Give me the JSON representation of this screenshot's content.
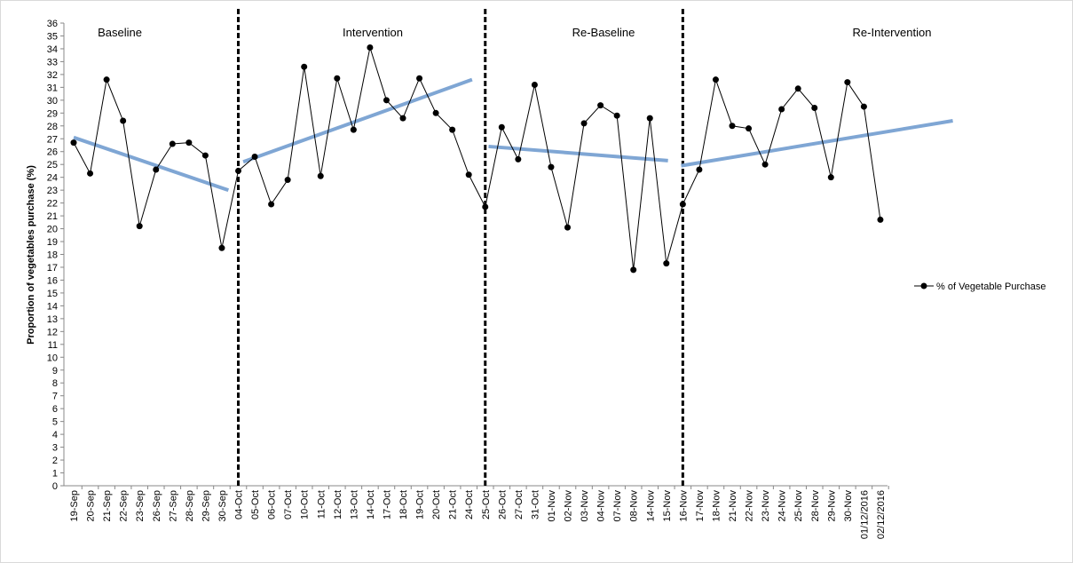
{
  "chart_data": {
    "type": "line",
    "y_axis_label": "Proportion of vegetables purchase (%)",
    "categories": [
      "19-Sep",
      "20-Sep",
      "21-Sep",
      "22-Sep",
      "23-Sep",
      "26-Sep",
      "27-Sep",
      "28-Sep",
      "29-Sep",
      "30-Sep",
      "04-Oct",
      "05-Oct",
      "06-Oct",
      "07-Oct",
      "10-Oct",
      "11-Oct",
      "12-Oct",
      "13-Oct",
      "14-Oct",
      "17-Oct",
      "18-Oct",
      "19-Oct",
      "20-Oct",
      "21-Oct",
      "24-Oct",
      "25-Oct",
      "26-Oct",
      "27-Oct",
      "31-Oct",
      "01-Nov",
      "02-Nov",
      "03-Nov",
      "04-Nov",
      "07-Nov",
      "08-Nov",
      "14-Nov",
      "15-Nov",
      "16-Nov",
      "17-Nov",
      "18-Nov",
      "21-Nov",
      "22-Nov",
      "23-Nov",
      "24-Nov",
      "25-Nov",
      "28-Nov",
      "29-Nov",
      "30-Nov",
      "01/12/2016",
      "02/12/2016"
    ],
    "series": [
      {
        "name": "% of Vegetable Purchase",
        "color": "#000000",
        "values": [
          26.7,
          24.3,
          31.6,
          28.4,
          20.2,
          24.6,
          26.6,
          26.7,
          25.7,
          18.5,
          24.5,
          25.6,
          21.9,
          23.8,
          32.6,
          24.1,
          31.7,
          27.7,
          34.1,
          30.0,
          28.6,
          31.7,
          29.0,
          27.7,
          24.2,
          21.7,
          27.9,
          25.4,
          31.2,
          24.8,
          20.1,
          28.2,
          29.6,
          28.8,
          16.8,
          28.6,
          17.3,
          21.9,
          24.6,
          31.6,
          28.0,
          27.8,
          25.0,
          29.3,
          30.9,
          29.4,
          24.0,
          31.4,
          29.5,
          20.7
        ]
      }
    ],
    "phases": [
      "Baseline",
      "Intervention",
      "Re-Baseline",
      "Re-Intervention"
    ],
    "phase_dividers": [
      10,
      25,
      37
    ],
    "trendlines": [
      {
        "color": "#7fa6d4",
        "x": [
          0,
          9.4
        ],
        "values": [
          27.1,
          23.0
        ]
      },
      {
        "color": "#7fa6d4",
        "x": [
          10.3,
          24.2
        ],
        "values": [
          25.2,
          31.6
        ]
      },
      {
        "color": "#7fa6d4",
        "x": [
          25.2,
          36.1
        ],
        "values": [
          26.4,
          25.3
        ]
      },
      {
        "color": "#7fa6d4",
        "x": [
          36.9,
          53.4
        ],
        "values": [
          24.9,
          28.4
        ]
      }
    ],
    "ylim": [
      0,
      36
    ],
    "yticks": [
      0,
      1,
      2,
      3,
      4,
      5,
      6,
      7,
      8,
      9,
      10,
      11,
      12,
      13,
      14,
      15,
      16,
      17,
      18,
      19,
      20,
      21,
      22,
      23,
      24,
      25,
      26,
      27,
      28,
      29,
      30,
      31,
      32,
      33,
      34,
      35,
      36
    ],
    "legend": "right"
  }
}
